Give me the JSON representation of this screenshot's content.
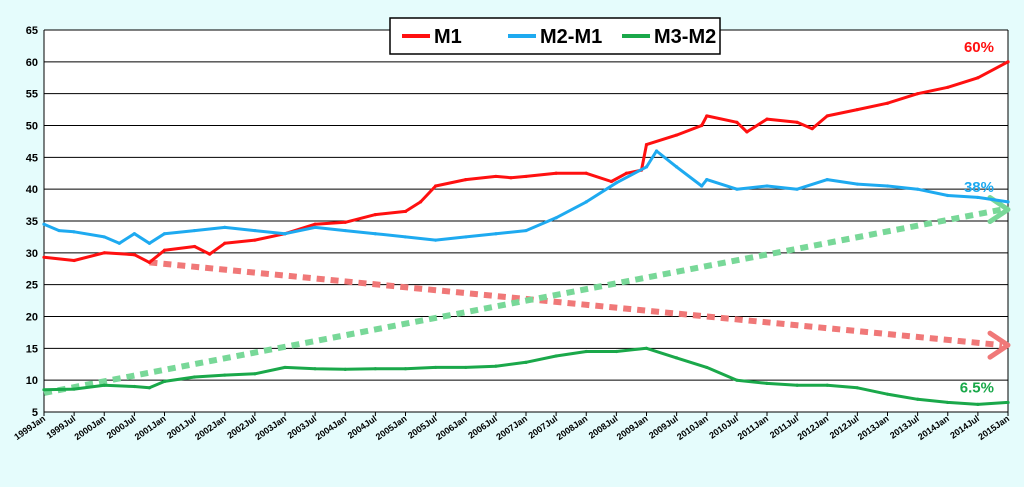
{
  "chart_data": {
    "type": "line",
    "title": "",
    "xlabel": "",
    "ylabel": "",
    "ylim": [
      5,
      65
    ],
    "yticks": [
      5,
      10,
      15,
      20,
      25,
      30,
      35,
      40,
      45,
      50,
      55,
      60,
      65
    ],
    "x_tick_labels": [
      "1999Jan",
      "1999Jul",
      "2000Jan",
      "2000Jul",
      "2001Jan",
      "2001Jul",
      "2002Jan",
      "2002Jul",
      "2003Jan",
      "2003Jul",
      "2004Jan",
      "2004Jul",
      "2005Jan",
      "2005Jul",
      "2006Jan",
      "2006Jul",
      "2007Jan",
      "2007Jul",
      "2008Jan",
      "2008Jul",
      "2009Jan",
      "2009Jul",
      "2010Jan",
      "2010Jul",
      "2011Jan",
      "2011Jul",
      "2012Jan",
      "2012Jul",
      "2013Jan",
      "2013Jul",
      "2014Jan",
      "2014Jul",
      "2015Jan"
    ],
    "grid": "horizontal",
    "legend_position": "top-center",
    "series": [
      {
        "name": "M1",
        "color": "#ff1010",
        "end_label": "60%",
        "points": [
          [
            "1999Jan",
            29.3
          ],
          [
            "1999Jul",
            28.8
          ],
          [
            "2000Jan",
            30.0
          ],
          [
            "2000Jul",
            29.7
          ],
          [
            "2000Oct",
            28.5
          ],
          [
            "2001Jan",
            30.4
          ],
          [
            "2001Jul",
            31.0
          ],
          [
            "2001Oct",
            29.8
          ],
          [
            "2002Jan",
            31.5
          ],
          [
            "2002Jul",
            32.0
          ],
          [
            "2003Jan",
            33.0
          ],
          [
            "2003Jul",
            34.5
          ],
          [
            "2004Jan",
            34.8
          ],
          [
            "2004Jul",
            36.0
          ],
          [
            "2005Jan",
            36.5
          ],
          [
            "2005Apr",
            38.0
          ],
          [
            "2005Jul",
            40.5
          ],
          [
            "2006Jan",
            41.5
          ],
          [
            "2006Jul",
            42.0
          ],
          [
            "2006Oct",
            41.8
          ],
          [
            "2007Jan",
            42.0
          ],
          [
            "2007Jul",
            42.5
          ],
          [
            "2008Jan",
            42.5
          ],
          [
            "2008Jun",
            41.2
          ],
          [
            "2008Sep",
            42.5
          ],
          [
            "2008Dec",
            43.0
          ],
          [
            "2009Jan",
            47.0
          ],
          [
            "2009Jul",
            48.5
          ],
          [
            "2009Dec",
            50.0
          ],
          [
            "2010Jan",
            51.5
          ],
          [
            "2010Jul",
            50.5
          ],
          [
            "2010Sep",
            49.0
          ],
          [
            "2011Jan",
            51.0
          ],
          [
            "2011Jul",
            50.5
          ],
          [
            "2011Oct",
            49.5
          ],
          [
            "2012Jan",
            51.5
          ],
          [
            "2012Jul",
            52.5
          ],
          [
            "2013Jan",
            53.5
          ],
          [
            "2013Jul",
            55.0
          ],
          [
            "2014Jan",
            56.0
          ],
          [
            "2014Jul",
            57.5
          ],
          [
            "2015Jan",
            60.0
          ]
        ]
      },
      {
        "name": "M2-M1",
        "color": "#1eaaf0",
        "end_label": "38%",
        "points": [
          [
            "1999Jan",
            34.5
          ],
          [
            "1999Apr",
            33.5
          ],
          [
            "1999Jul",
            33.3
          ],
          [
            "2000Jan",
            32.5
          ],
          [
            "2000Apr",
            31.5
          ],
          [
            "2000Jul",
            33.0
          ],
          [
            "2000Oct",
            31.5
          ],
          [
            "2001Jan",
            33.0
          ],
          [
            "2001Jul",
            33.5
          ],
          [
            "2002Jan",
            34.0
          ],
          [
            "2002Jul",
            33.5
          ],
          [
            "2003Jan",
            33.0
          ],
          [
            "2003Jul",
            34.0
          ],
          [
            "2004Jan",
            33.5
          ],
          [
            "2004Jul",
            33.0
          ],
          [
            "2005Jan",
            32.5
          ],
          [
            "2005Jul",
            32.0
          ],
          [
            "2006Jan",
            32.5
          ],
          [
            "2006Jul",
            33.0
          ],
          [
            "2007Jan",
            33.5
          ],
          [
            "2007Jul",
            35.5
          ],
          [
            "2008Jan",
            38.0
          ],
          [
            "2008Jul",
            41.0
          ],
          [
            "2009Jan",
            43.5
          ],
          [
            "2009Mar",
            46.0
          ],
          [
            "2009Jul",
            43.5
          ],
          [
            "2009Dec",
            40.5
          ],
          [
            "2010Jan",
            41.5
          ],
          [
            "2010Jul",
            40.0
          ],
          [
            "2011Jan",
            40.5
          ],
          [
            "2011Jul",
            40.0
          ],
          [
            "2012Jan",
            41.5
          ],
          [
            "2012Jul",
            40.8
          ],
          [
            "2013Jan",
            40.5
          ],
          [
            "2013Jul",
            40.0
          ],
          [
            "2014Jan",
            39.0
          ],
          [
            "2014Jul",
            38.7
          ],
          [
            "2015Jan",
            38.0
          ]
        ]
      },
      {
        "name": "M3-M2",
        "color": "#1aa84a",
        "end_label": "6.5%",
        "points": [
          [
            "1999Jan",
            8.5
          ],
          [
            "1999Jul",
            8.6
          ],
          [
            "2000Jan",
            9.2
          ],
          [
            "2000Jul",
            9.0
          ],
          [
            "2000Oct",
            8.8
          ],
          [
            "2001Jan",
            9.8
          ],
          [
            "2001Jul",
            10.5
          ],
          [
            "2002Jan",
            10.8
          ],
          [
            "2002Jul",
            11.0
          ],
          [
            "2003Jan",
            12.0
          ],
          [
            "2003Jul",
            11.8
          ],
          [
            "2004Jan",
            11.7
          ],
          [
            "2004Jul",
            11.8
          ],
          [
            "2005Jan",
            11.8
          ],
          [
            "2005Jul",
            12.0
          ],
          [
            "2006Jan",
            12.0
          ],
          [
            "2006Jul",
            12.2
          ],
          [
            "2007Jan",
            12.8
          ],
          [
            "2007Jul",
            13.8
          ],
          [
            "2008Jan",
            14.5
          ],
          [
            "2008Jul",
            14.5
          ],
          [
            "2009Jan",
            15.0
          ],
          [
            "2009Jul",
            13.5
          ],
          [
            "2010Jan",
            12.0
          ],
          [
            "2010Jul",
            10.0
          ],
          [
            "2011Jan",
            9.5
          ],
          [
            "2011Jul",
            9.2
          ],
          [
            "2012Jan",
            9.2
          ],
          [
            "2012Jul",
            8.8
          ],
          [
            "2013Jan",
            7.8
          ],
          [
            "2013Jul",
            7.0
          ],
          [
            "2014Jan",
            6.5
          ],
          [
            "2014Jul",
            6.2
          ],
          [
            "2015Jan",
            6.5
          ]
        ]
      }
    ],
    "annotations": [
      {
        "type": "dotted-arrow",
        "color": "#f07878",
        "from": [
          "2000Oct",
          28.5
        ],
        "to": [
          "2015Jan",
          15.5
        ]
      },
      {
        "type": "dotted-arrow",
        "color": "#78d898",
        "from": [
          "1999Jan",
          8.0
        ],
        "to": [
          "2015Jan",
          36.8
        ]
      }
    ]
  }
}
